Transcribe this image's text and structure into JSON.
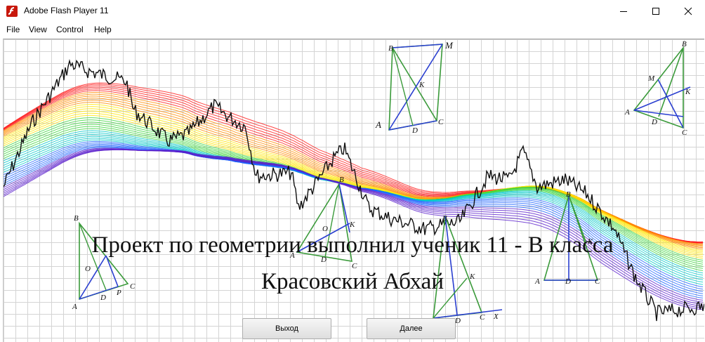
{
  "window": {
    "title": "Adobe Flash Player 11"
  },
  "menu": {
    "items": [
      "File",
      "View",
      "Control",
      "Help"
    ]
  },
  "headline": {
    "line1": "Проект по геометрии выполнил ученик 11 - В класса",
    "line2": "Красовский Абхай"
  },
  "buttons": {
    "exit_label": "Выход",
    "next_label": "Далее"
  },
  "figures": {
    "top_center": [
      "B",
      "M",
      "K",
      "A",
      "D",
      "C"
    ],
    "top_right": [
      "B",
      "M",
      "K",
      "A",
      "D",
      "C"
    ],
    "left": [
      "B",
      "O",
      "A",
      "D",
      "P",
      "C"
    ],
    "mid_left": [
      "B",
      "O",
      "K",
      "A",
      "D",
      "C"
    ],
    "center_bottom": [
      "B",
      "K",
      "A",
      "D",
      "C",
      "X"
    ],
    "right": [
      "B",
      "K",
      "A",
      "D",
      "C"
    ]
  },
  "colors": {
    "ribbon": [
      "#ff1a1a",
      "#ff8c00",
      "#ffe600",
      "#3cd63c",
      "#00c8c8",
      "#1e64ff",
      "#5a1ecc"
    ],
    "price_line": "#111111",
    "figure_green": "#3a9a3a",
    "figure_blue": "#2a3fd0"
  }
}
